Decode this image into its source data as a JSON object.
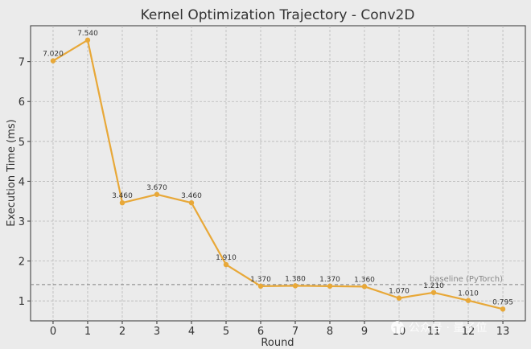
{
  "chart_data": {
    "type": "line",
    "title": "Kernel Optimization Trajectory - Conv2D",
    "xlabel": "Round",
    "ylabel": "Execution Time (ms)",
    "x": [
      0,
      1,
      2,
      3,
      4,
      5,
      6,
      7,
      8,
      9,
      10,
      11,
      12,
      13
    ],
    "values": [
      7.02,
      7.54,
      3.46,
      3.67,
      3.46,
      1.91,
      1.37,
      1.38,
      1.37,
      1.36,
      1.07,
      1.21,
      1.01,
      0.795
    ],
    "data_labels": [
      "7.020",
      "7.540",
      "3.460",
      "3.670",
      "3.460",
      "1.910",
      "1.370",
      "1.380",
      "1.370",
      "1.360",
      "1.070",
      "1.210",
      "1.010",
      "0.795"
    ],
    "xlim": [
      -0.65,
      13.65
    ],
    "ylim": [
      0.5,
      7.9
    ],
    "yticks": [
      1,
      2,
      3,
      4,
      5,
      6,
      7
    ],
    "grid": true,
    "line_color": "#e8a838",
    "baseline": {
      "value": 1.41,
      "label": "baseline (PyTorch)",
      "color": "#808080"
    }
  },
  "watermark": {
    "icon": "wechat-icon",
    "text": "公众号 · 量子位"
  }
}
